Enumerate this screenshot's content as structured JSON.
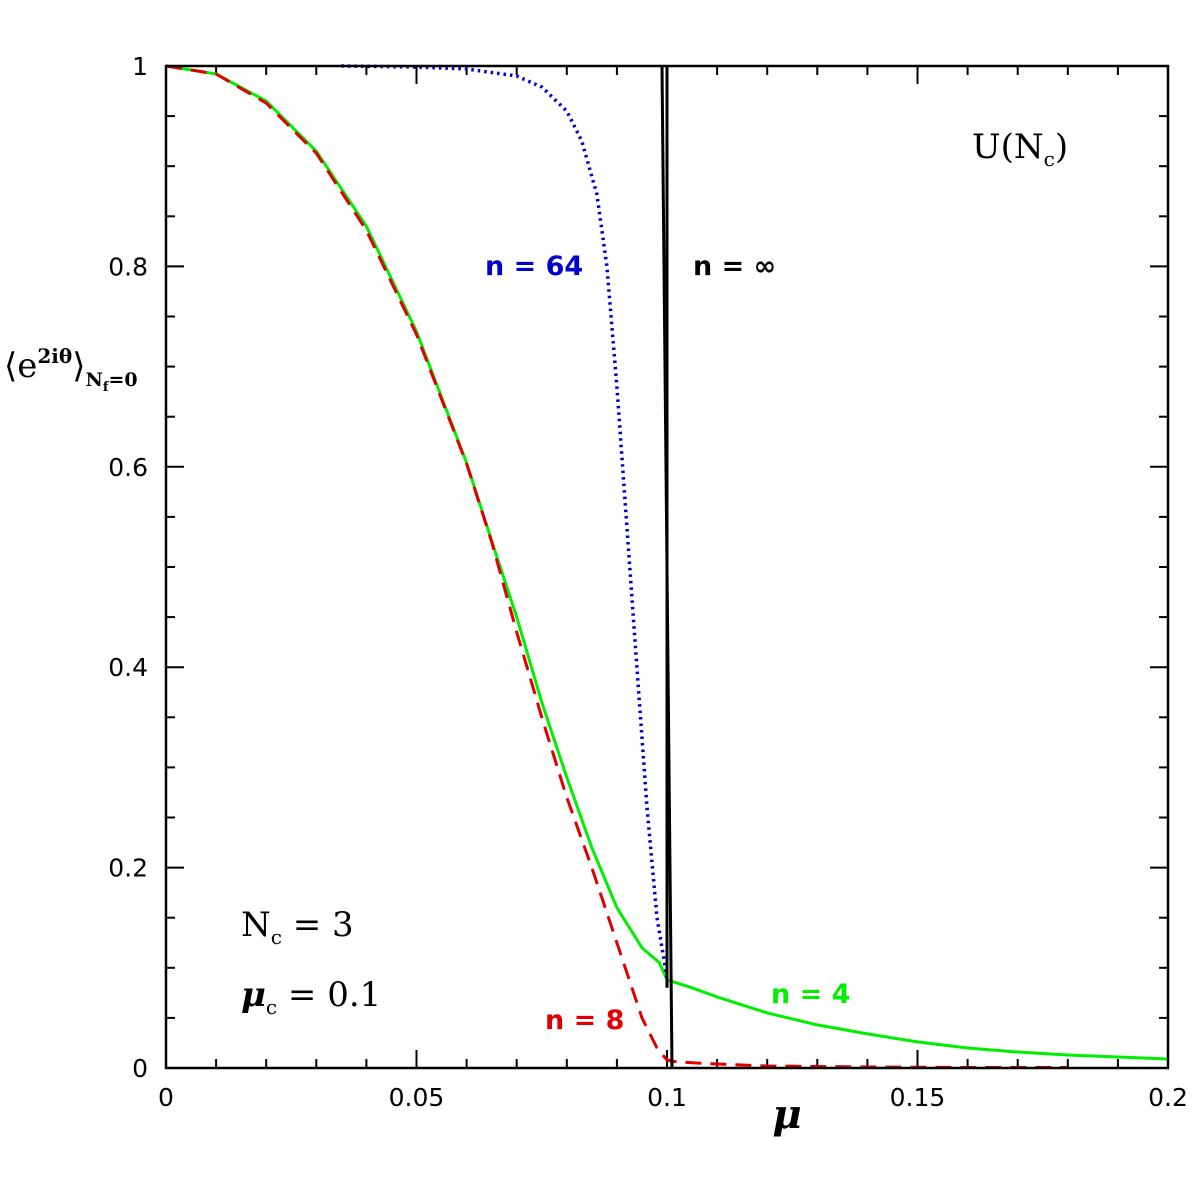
{
  "chart_data": {
    "type": "line",
    "xlabel": "μ",
    "ylabel": {
      "angle_open": "⟨",
      "base": "e",
      "superscript": "2iθ",
      "angle_close": "⟩",
      "subscript": "N",
      "subscript_index": "f",
      "subscript_tail": "=0"
    },
    "xlim": [
      0,
      0.2
    ],
    "ylim": [
      0,
      1
    ],
    "x_ticks": [
      {
        "value": 0,
        "label": "0"
      },
      {
        "value": 0.05,
        "label": "0.05"
      },
      {
        "value": 0.1,
        "label": "0.1"
      },
      {
        "value": 0.15,
        "label": "0.15"
      },
      {
        "value": 0.2,
        "label": "0.2"
      }
    ],
    "y_ticks": [
      {
        "value": 0,
        "label": "0"
      },
      {
        "value": 0.2,
        "label": "0.2"
      },
      {
        "value": 0.4,
        "label": "0.4"
      },
      {
        "value": 0.6,
        "label": "0.6"
      },
      {
        "value": 0.8,
        "label": "0.8"
      },
      {
        "value": 1,
        "label": "1"
      }
    ],
    "grid": false,
    "series": [
      {
        "name": "n = 4",
        "color": "#00ee00",
        "style": "solid",
        "x": [
          0,
          0.01,
          0.02,
          0.03,
          0.04,
          0.05,
          0.06,
          0.065,
          0.07,
          0.075,
          0.08,
          0.085,
          0.09,
          0.095,
          0.0985,
          0.1,
          0.105,
          0.11,
          0.12,
          0.13,
          0.14,
          0.15,
          0.16,
          0.17,
          0.18,
          0.19,
          0.2
        ],
        "y": [
          1,
          0.992,
          0.965,
          0.915,
          0.84,
          0.735,
          0.604,
          0.526,
          0.45,
          0.365,
          0.29,
          0.22,
          0.16,
          0.12,
          0.105,
          0.088,
          0.08,
          0.071,
          0.055,
          0.043,
          0.034,
          0.026,
          0.02,
          0.016,
          0.013,
          0.011,
          0.009
        ]
      },
      {
        "name": "n = 8",
        "color": "#e00000",
        "style": "dashed",
        "x": [
          0,
          0.01,
          0.02,
          0.03,
          0.04,
          0.05,
          0.06,
          0.065,
          0.07,
          0.075,
          0.08,
          0.085,
          0.09,
          0.095,
          0.098,
          0.1,
          0.102,
          0.11,
          0.12,
          0.14,
          0.16,
          0.18
        ],
        "y": [
          1,
          0.992,
          0.963,
          0.913,
          0.836,
          0.732,
          0.603,
          0.525,
          0.435,
          0.35,
          0.27,
          0.2,
          0.125,
          0.05,
          0.02,
          0.008,
          0.006,
          0.004,
          0.002,
          0.001,
          0.0005,
          0.0005
        ]
      },
      {
        "name": "n = 64",
        "color": "#0000cc",
        "style": "dotted",
        "x": [
          0.035,
          0.05,
          0.06,
          0.07,
          0.075,
          0.08,
          0.083,
          0.086,
          0.088,
          0.09,
          0.092,
          0.094,
          0.096,
          0.098,
          0.1
        ],
        "y": [
          1,
          0.999,
          0.997,
          0.99,
          0.979,
          0.955,
          0.925,
          0.872,
          0.8,
          0.68,
          0.54,
          0.4,
          0.26,
          0.15,
          0.09
        ]
      },
      {
        "name": "n = ∞",
        "color": "#000000",
        "style": "solid",
        "x": [
          0.099,
          0.101
        ],
        "y": [
          1,
          0
        ]
      },
      {
        "name": "",
        "color": "#000000",
        "style": "solid",
        "x": [
          0.1,
          0.1
        ],
        "y": [
          1,
          0.08
        ]
      }
    ],
    "annotations": {
      "u_nc": {
        "base": "U(N",
        "sub": "c",
        "tail": ")"
      },
      "n64": "n = 64",
      "ninf": "n = ∞",
      "n4": "n = 4",
      "n8": "n = 8",
      "nc": {
        "base": "N",
        "sub": "c",
        "value": " =  3"
      },
      "muc": {
        "base": "μ",
        "sub": "c",
        "value": " =  0.1"
      }
    }
  }
}
